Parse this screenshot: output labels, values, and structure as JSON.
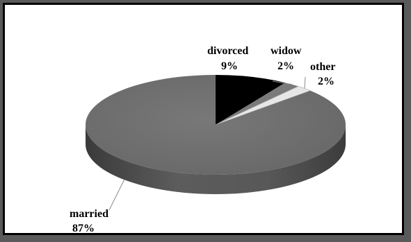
{
  "chart_data": {
    "type": "pie",
    "style": "3d",
    "title": "",
    "slices": [
      {
        "label": "divorced",
        "value": 9,
        "value_label": "9%",
        "color": "#000000"
      },
      {
        "label": "widow",
        "value": 2,
        "value_label": "2%",
        "color": "#7a7a7a"
      },
      {
        "label": "other",
        "value": 2,
        "value_label": "2%",
        "color": "#e6e6e6"
      },
      {
        "label": "married",
        "value": 87,
        "value_label": "87%",
        "color": "#707070"
      }
    ],
    "legend": "none"
  }
}
